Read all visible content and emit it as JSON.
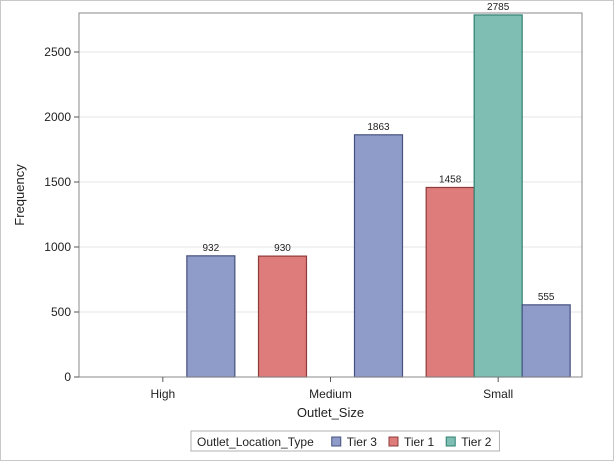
{
  "chart_data": {
    "type": "bar",
    "xlabel": "Outlet_Size",
    "ylabel": "Frequency",
    "ylim": [
      0,
      2800
    ],
    "yticks": [
      0,
      500,
      1000,
      1500,
      2000,
      2500
    ],
    "grid": true,
    "legend_position": "bottom",
    "legend_title": "Outlet_Location_Type",
    "categories": [
      "High",
      "Medium",
      "Small"
    ],
    "group_order": [
      "Tier 1",
      "Tier 2",
      "Tier 3"
    ],
    "legend_order": [
      "Tier 3",
      "Tier 1",
      "Tier 2"
    ],
    "series": [
      {
        "name": "Tier 3",
        "color": "#8f9cc9",
        "stroke": "#45507e",
        "values": [
          932,
          1863,
          555
        ]
      },
      {
        "name": "Tier 1",
        "color": "#de7b7b",
        "stroke": "#8f3b3b",
        "values": [
          null,
          930,
          1458
        ]
      },
      {
        "name": "Tier 2",
        "color": "#7fbfb3",
        "stroke": "#2f7f72",
        "values": [
          null,
          null,
          2785
        ]
      }
    ]
  }
}
